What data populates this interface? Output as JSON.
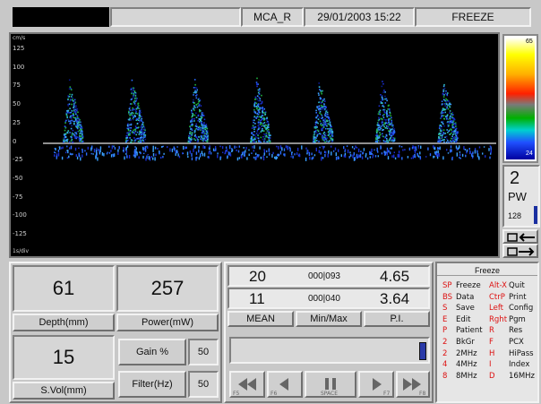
{
  "top_bar": {
    "probe": "MCA_R",
    "datetime": "29/01/2003 15:22",
    "mode": "FREEZE"
  },
  "spectrum": {
    "unit_label": "cm/s",
    "time_label": "1s/div",
    "y_ticks": [
      "125",
      "100",
      "75",
      "50",
      "25",
      "0",
      "-25",
      "-50",
      "-75",
      "-100",
      "-125"
    ],
    "beats": 7
  },
  "color_scale": {
    "top_value": "65",
    "bottom_value": "24"
  },
  "side_panel": {
    "gate_value": "2",
    "gate_mode": "PW",
    "sample_value": "128"
  },
  "params": {
    "depth_value": "61",
    "depth_label": "Depth(mm)",
    "power_value": "257",
    "power_label": "Power(mW)",
    "svol_value": "15",
    "svol_label": "S.Vol(mm)",
    "gain_label": "Gain %",
    "gain_value": "50",
    "filter_label": "Filter(Hz)",
    "filter_value": "50"
  },
  "measurements": {
    "row1": {
      "left": "20",
      "mid": "000|093",
      "right": "4.65"
    },
    "row2": {
      "left": "11",
      "mid": "000|040",
      "right": "3.64"
    },
    "mean_label": "MEAN",
    "minmax_label": "Min/Max",
    "pi_label": "P.I."
  },
  "playback": {
    "rewind_key": "F5",
    "back_key": "F6",
    "pause_key": "SPACE",
    "forward_key": "F7",
    "ff_key": "F8"
  },
  "keys": {
    "title": "Freeze",
    "rows": [
      {
        "c1": "SP",
        "t1": "Freeze",
        "c2": "Alt-X",
        "t2": "Quit"
      },
      {
        "c1": "BS",
        "t1": "Data",
        "c2": "CtrP",
        "t2": "Print"
      },
      {
        "c1": "S",
        "t1": "Save",
        "c2": "Left",
        "t2": "Config"
      },
      {
        "c1": "E",
        "t1": "Edit",
        "c2": "Rght",
        "t2": "Pgm"
      },
      {
        "c1": "P",
        "t1": "Patient",
        "c2": "R",
        "t2": "Res"
      },
      {
        "c1": "2",
        "t1": "BkGr",
        "c2": "F",
        "t2": "PCX"
      },
      {
        "c1": "2",
        "t1": "2MHz",
        "c2": "H",
        "t2": "HiPass"
      },
      {
        "c1": "4",
        "t1": "4MHz",
        "c2": "I",
        "t2": "Index"
      },
      {
        "c1": "8",
        "t1": "8MHz",
        "c2": "D",
        "t2": "16MHz"
      }
    ]
  },
  "colors": {
    "background": "#000000",
    "trace": "#2a6cff",
    "baseline": "#c0c0c0"
  }
}
